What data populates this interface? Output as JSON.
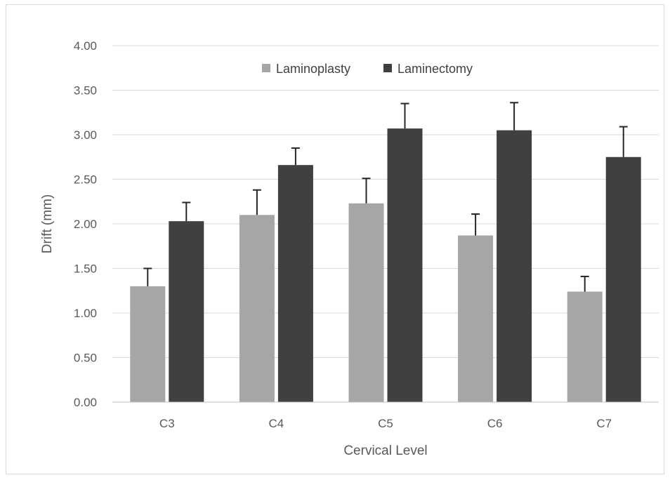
{
  "chart_data": {
    "type": "bar",
    "title": "",
    "xlabel": "Cervical Level",
    "ylabel": "Drift (mm)",
    "ylim": [
      0,
      4
    ],
    "y_tick_step": 0.5,
    "y_tick_decimals": 2,
    "grid": true,
    "legend_position": "top-center",
    "categories": [
      "C3",
      "C4",
      "C5",
      "C6",
      "C7"
    ],
    "series": [
      {
        "name": "Laminoplasty",
        "color": "#a6a6a6",
        "values": [
          1.3,
          2.1,
          2.23,
          1.87,
          1.24
        ],
        "error_plus": [
          0.2,
          0.28,
          0.28,
          0.24,
          0.17
        ]
      },
      {
        "name": "Laminectomy",
        "color": "#404040",
        "values": [
          2.03,
          2.66,
          3.07,
          3.05,
          2.75
        ],
        "error_plus": [
          0.21,
          0.19,
          0.28,
          0.31,
          0.34
        ]
      }
    ]
  }
}
